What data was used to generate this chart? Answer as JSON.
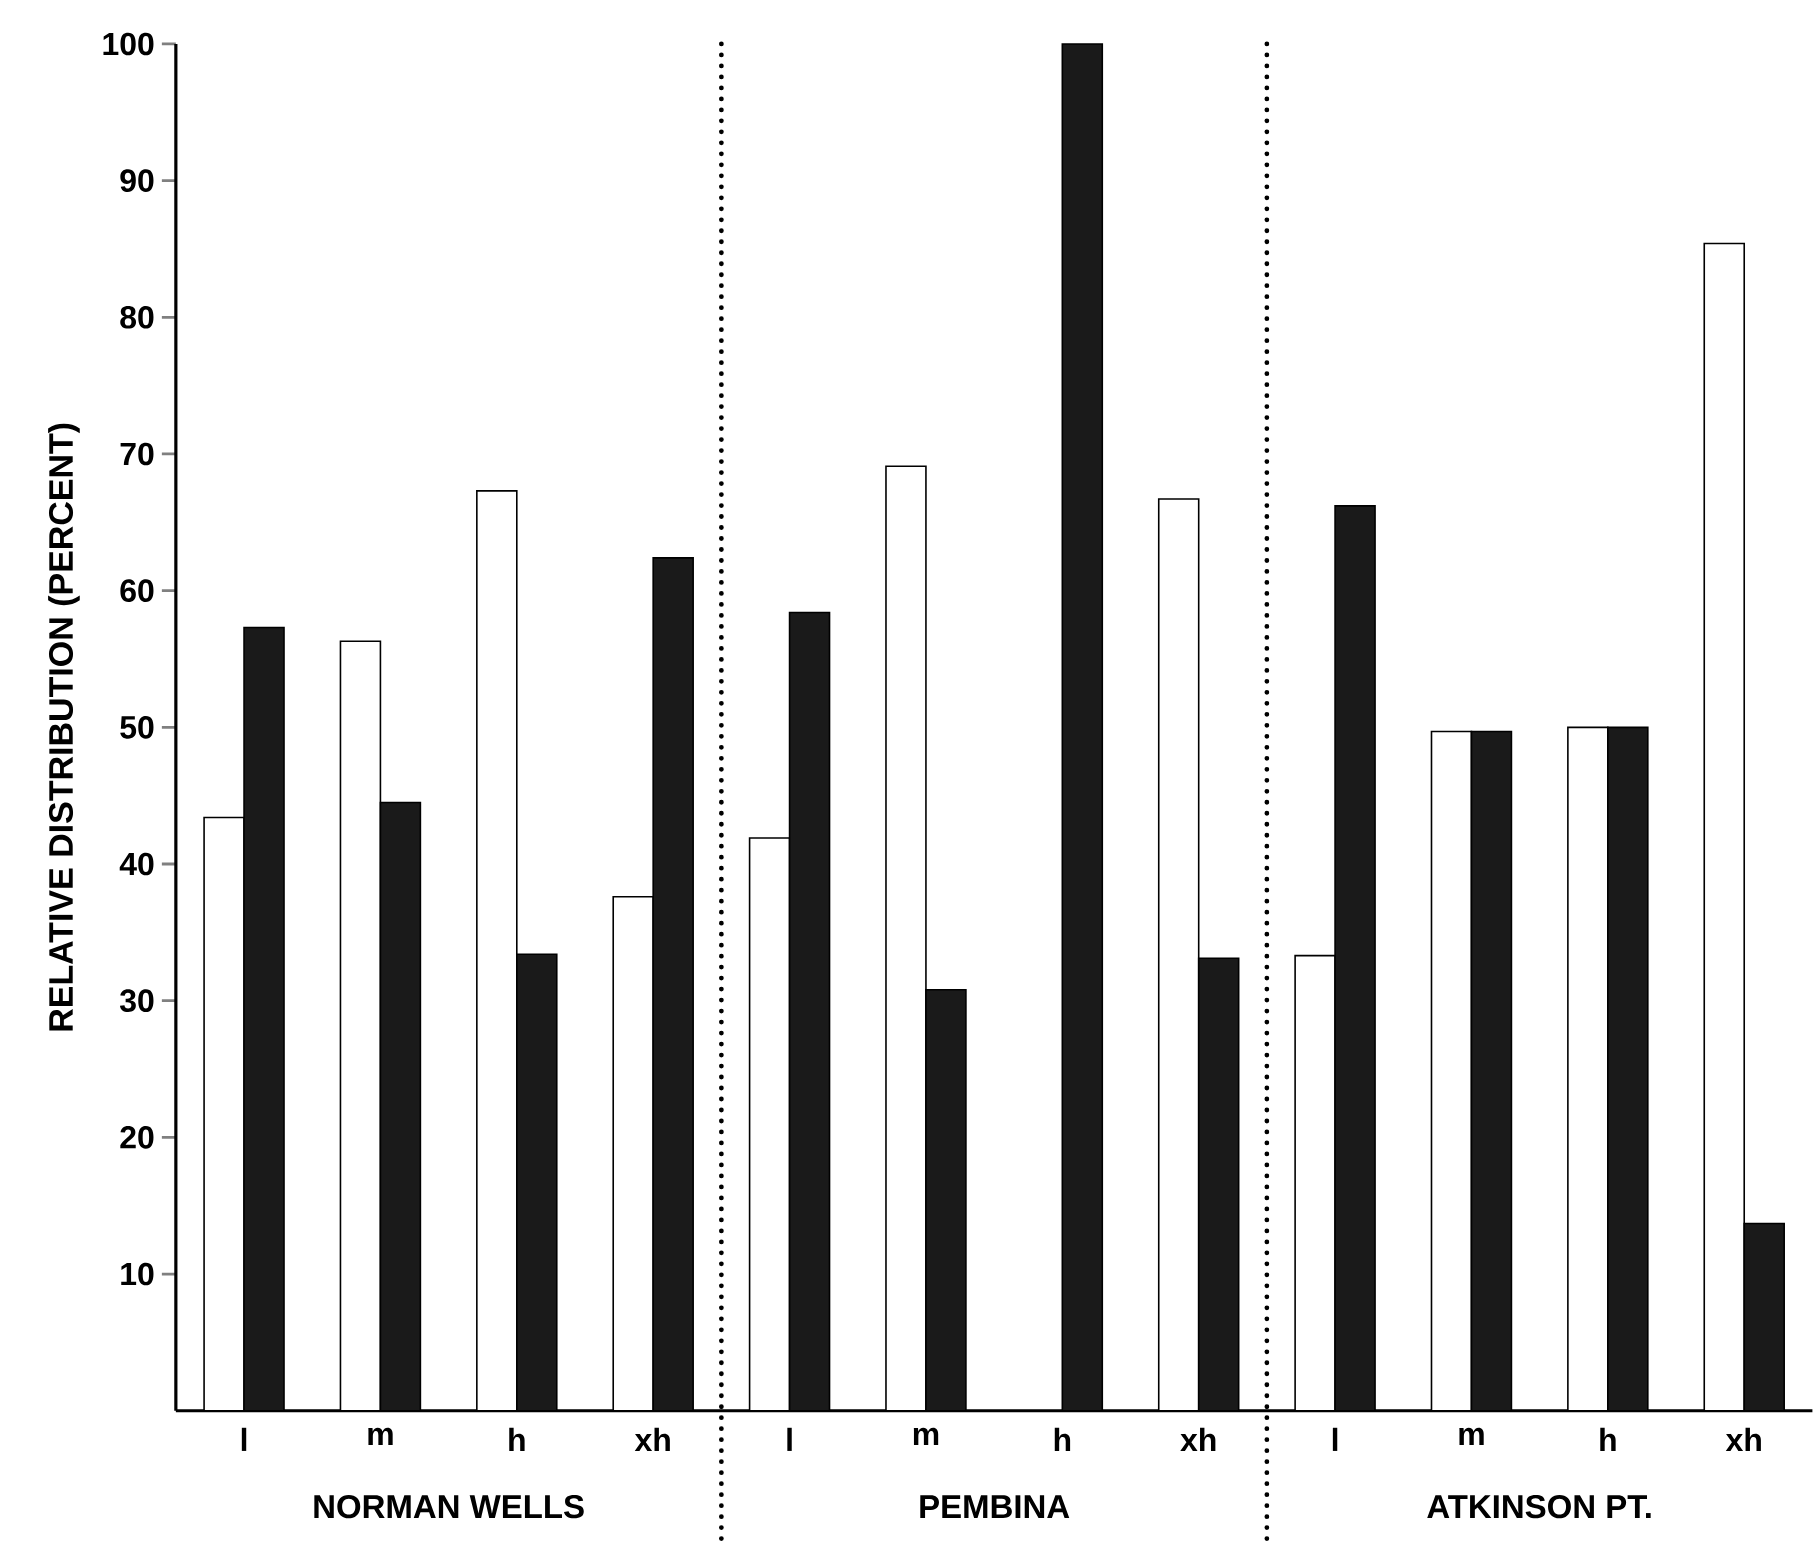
{
  "chart_data": {
    "type": "bar",
    "ylabel": "RELATIVE DISTRIBUTION (PERCENT)",
    "categories": [
      "l",
      "m",
      "h",
      "xh",
      "l",
      "m",
      "h",
      "xh",
      "l",
      "m",
      "h",
      "xh"
    ],
    "series": [
      {
        "color": "#ffffff",
        "values": [
          43.4,
          56.3,
          67.3,
          37.6,
          41.9,
          69.1,
          null,
          66.7,
          33.3,
          49.7,
          50,
          85.4
        ]
      },
      {
        "color": "#1a1a1a",
        "values": [
          57.3,
          44.5,
          33.4,
          62.4,
          58.4,
          30.8,
          100,
          33.1,
          66.2,
          49.7,
          50,
          13.7
        ]
      }
    ],
    "ylim": [
      0,
      100
    ],
    "yticks": [
      10,
      20,
      30,
      40,
      50,
      60,
      70,
      80,
      90,
      100
    ],
    "annotations": [
      "NORMAN WELLS",
      "PEMBINA",
      "ATKINSON PT."
    ]
  }
}
